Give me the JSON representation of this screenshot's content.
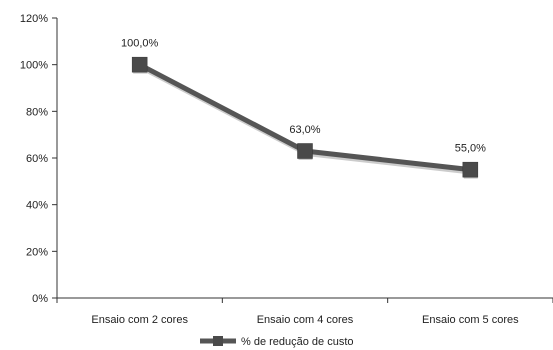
{
  "chart_data": {
    "type": "line",
    "categories": [
      "Ensaio com 2 cores",
      "Ensaio com 4 cores",
      "Ensaio com 5 cores"
    ],
    "series": [
      {
        "name": "% de redução de custo",
        "values": [
          100,
          63,
          55
        ],
        "labels": [
          "100,0%",
          "63,0%",
          "55,0%"
        ],
        "color": "#555555"
      }
    ],
    "ylim": [
      0,
      120
    ],
    "yticks": [
      0,
      20,
      40,
      60,
      80,
      100,
      120
    ],
    "ytick_labels": [
      "0%",
      "20%",
      "40%",
      "60%",
      "80%",
      "100%",
      "120%"
    ],
    "grid": false,
    "legend_position": "bottom-center"
  }
}
